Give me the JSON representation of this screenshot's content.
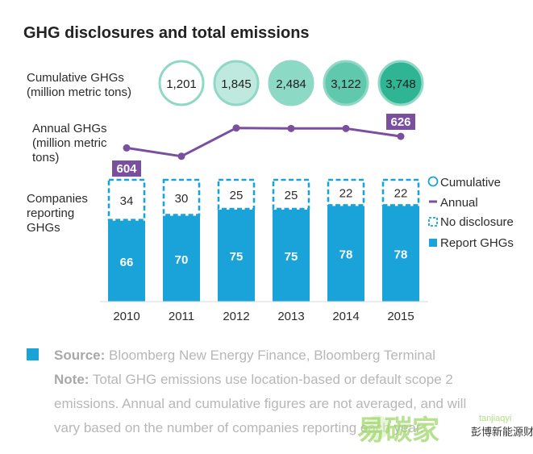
{
  "title": "GHG disclosures and total emissions",
  "row_labels": {
    "cumulative": [
      "Cumulative GHGs",
      "(million metric tons)"
    ],
    "annual": [
      "Annual GHGs",
      "(million metric",
      "tons)"
    ],
    "companies": [
      "Companies",
      "reporting",
      "GHGs"
    ]
  },
  "chart_data": {
    "type": "bar",
    "stacked": true,
    "categories": [
      "2010",
      "2011",
      "2012",
      "2013",
      "2014",
      "2015"
    ],
    "series": [
      {
        "name": "Report GHGs",
        "values": [
          66,
          70,
          75,
          75,
          78,
          78
        ],
        "color": "#1aa3d9"
      },
      {
        "name": "No disclosure",
        "values": [
          34,
          30,
          25,
          25,
          22,
          22
        ],
        "color": "#1aa3d9"
      }
    ],
    "ylim": [
      0,
      100
    ],
    "cumulative": {
      "name": "Cumulative",
      "values": [
        1201,
        1845,
        2484,
        3122,
        3748
      ],
      "labels": [
        "1,201",
        "1,845",
        "2,484",
        "3,122",
        "3,748"
      ],
      "colors": [
        "#ffffff",
        "#bfe9df",
        "#8cd9c6",
        "#5fc8ad",
        "#2fb593"
      ],
      "stroke": "#8fd8c6"
    },
    "annual": {
      "name": "Annual",
      "values": [
        604,
        588,
        642,
        641,
        641,
        626
      ],
      "labeled": {
        "first": "604",
        "last": "626"
      },
      "color": "#7a4fa0"
    },
    "legend": [
      "Cumulative",
      "Annual",
      "No disclosure",
      "Report GHGs"
    ]
  },
  "footer": {
    "source_label": "Source:",
    "source_text": " Bloomberg New Energy Finance, Bloomberg Terminal",
    "note_label": "Note:",
    "note_lines": [
      " Total GHG emissions use location-based or default scope 2",
      "emissions. Annual and cumulative figures are not averaged, and will",
      "vary based on the number of companies reporting each year."
    ],
    "accent": "#1aa3d9"
  },
  "watermark": {
    "mark": "易碳家",
    "sub": "彭博新能源财经",
    "small": "tanjiaqyi"
  }
}
